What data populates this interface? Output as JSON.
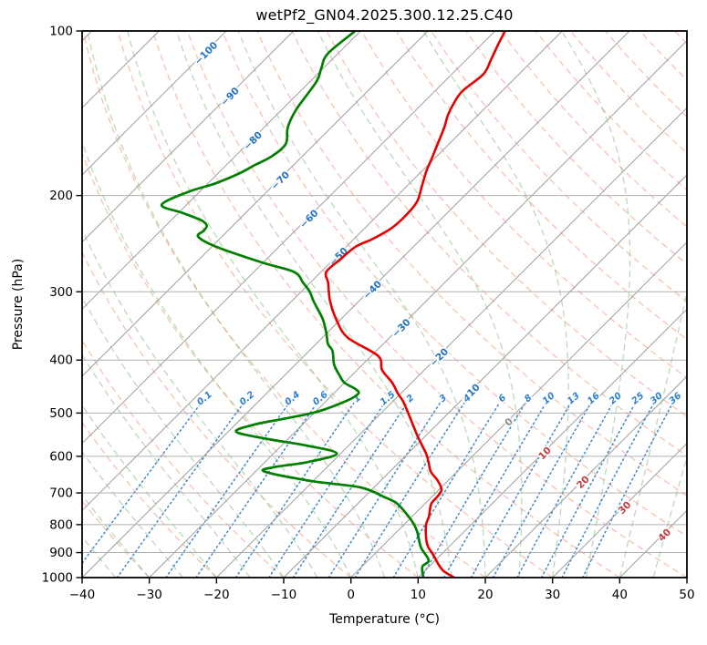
{
  "title": "wetPf2_GN04.2025.300.12.25.C40",
  "axes": {
    "x_label": "Temperature (°C)",
    "y_label": "Pressure (hPa)",
    "x_ticks": [
      -40,
      -30,
      -20,
      -10,
      0,
      10,
      20,
      30,
      40,
      50
    ],
    "y_ticks": [
      100,
      200,
      300,
      400,
      500,
      600,
      700,
      800,
      900,
      1000
    ],
    "x_range_c": [
      -40,
      50
    ],
    "pressure_range_hpa": [
      100,
      1000
    ],
    "y_scale": "log10",
    "skew_degrees": 45,
    "grid": true
  },
  "chart_data": {
    "type": "line",
    "projection": "skew-t-log-p",
    "title": "wetPf2_GN04.2025.300.12.25.C40",
    "xlabel": "Temperature (°C)",
    "ylabel": "Pressure (hPa)",
    "series": [
      {
        "name": "temperature",
        "color": "#e60000",
        "width": 2.6,
        "points_p_t": [
          [
            100,
            -58.5
          ],
          [
            106,
            -57.5
          ],
          [
            113,
            -56.3
          ],
          [
            120,
            -55.3
          ],
          [
            129,
            -55.9
          ],
          [
            137,
            -55.2
          ],
          [
            143,
            -54.4
          ],
          [
            150,
            -53.2
          ],
          [
            161,
            -51.7
          ],
          [
            172,
            -50.3
          ],
          [
            180,
            -49.4
          ],
          [
            192,
            -47.8
          ],
          [
            205,
            -46.2
          ],
          [
            217,
            -45.8
          ],
          [
            229,
            -46.0
          ],
          [
            240,
            -47.2
          ],
          [
            248,
            -48.6
          ],
          [
            262,
            -49.0
          ],
          [
            276,
            -49.2
          ],
          [
            289,
            -47.3
          ],
          [
            312,
            -44.3
          ],
          [
            340,
            -40.2
          ],
          [
            364,
            -36.2
          ],
          [
            393,
            -29.0
          ],
          [
            417,
            -26.3
          ],
          [
            440,
            -22.9
          ],
          [
            460,
            -20.5
          ],
          [
            475,
            -18.6
          ],
          [
            497,
            -16.3
          ],
          [
            530,
            -13.1
          ],
          [
            556,
            -10.7
          ],
          [
            593,
            -7.3
          ],
          [
            617,
            -5.5
          ],
          [
            640,
            -3.9
          ],
          [
            665,
            -1.5
          ],
          [
            691,
            0.4
          ],
          [
            712,
            0.8
          ],
          [
            734,
            1.0
          ],
          [
            773,
            2.5
          ],
          [
            800,
            3.3
          ],
          [
            851,
            5.5
          ],
          [
            880,
            7.0
          ],
          [
            906,
            8.7
          ],
          [
            950,
            11.3
          ],
          [
            975,
            13.0
          ],
          [
            998,
            15.2
          ]
        ]
      },
      {
        "name": "dewpoint",
        "color": "#007f00",
        "width": 2.7,
        "points_p_t": [
          [
            100,
            -80.8
          ],
          [
            110,
            -81.5
          ],
          [
            117,
            -80.3
          ],
          [
            124,
            -79.0
          ],
          [
            139,
            -77.9
          ],
          [
            150,
            -76.5
          ],
          [
            161,
            -74.3
          ],
          [
            170,
            -74.6
          ],
          [
            176,
            -75.8
          ],
          [
            182,
            -76.8
          ],
          [
            190,
            -78.9
          ],
          [
            197,
            -81.7
          ],
          [
            208,
            -83.7
          ],
          [
            215,
            -79.5
          ],
          [
            222,
            -75.5
          ],
          [
            227,
            -73.9
          ],
          [
            232,
            -73.6
          ],
          [
            238,
            -73.5
          ],
          [
            248,
            -69.4
          ],
          [
            265,
            -60.3
          ],
          [
            276,
            -54.0
          ],
          [
            289,
            -51.0
          ],
          [
            300,
            -48.7
          ],
          [
            313,
            -46.6
          ],
          [
            336,
            -42.8
          ],
          [
            357,
            -40.1
          ],
          [
            374,
            -38.2
          ],
          [
            385,
            -36.5
          ],
          [
            408,
            -34.2
          ],
          [
            426,
            -31.9
          ],
          [
            440,
            -30.0
          ],
          [
            452,
            -27.4
          ],
          [
            461,
            -26.3
          ],
          [
            475,
            -27.0
          ],
          [
            497,
            -29.7
          ],
          [
            512,
            -33.6
          ],
          [
            525,
            -37.2
          ],
          [
            541,
            -38.8
          ],
          [
            557,
            -33.4
          ],
          [
            573,
            -26.4
          ],
          [
            593,
            -20.6
          ],
          [
            615,
            -23.7
          ],
          [
            628,
            -27.9
          ],
          [
            640,
            -28.6
          ],
          [
            666,
            -20.2
          ],
          [
            684,
            -12.0
          ],
          [
            713,
            -6.9
          ],
          [
            729,
            -4.5
          ],
          [
            752,
            -2.3
          ],
          [
            790,
            0.8
          ],
          [
            822,
            2.9
          ],
          [
            880,
            5.9
          ],
          [
            930,
            9.0
          ],
          [
            955,
            9.0
          ],
          [
            998,
            10.7
          ]
        ]
      }
    ],
    "isotherms": {
      "start": -160,
      "end": 50,
      "step": 10,
      "color": "#9e9e9e",
      "labels": [
        {
          "value": -100,
          "p": 110,
          "color": "#2273c3"
        },
        {
          "value": -90,
          "p": 132,
          "color": "#2273c3"
        },
        {
          "value": -80,
          "p": 159,
          "color": "#2273c3"
        },
        {
          "value": -70,
          "p": 188,
          "color": "#2273c3"
        },
        {
          "value": -60,
          "p": 221,
          "color": "#2273c3"
        },
        {
          "value": -50,
          "p": 259,
          "color": "#2273c3"
        },
        {
          "value": -40,
          "p": 298,
          "color": "#2273c3"
        },
        {
          "value": -30,
          "p": 350,
          "color": "#2273c3"
        },
        {
          "value": -20,
          "p": 396,
          "color": "#2273c3"
        },
        {
          "value": -10,
          "p": 460,
          "color": "#2273c3"
        },
        {
          "value": 0,
          "p": 520,
          "color": "#8a8a8a"
        },
        {
          "value": 10,
          "p": 593,
          "color": "#c23b3b"
        },
        {
          "value": 20,
          "p": 670,
          "color": "#c23b3b"
        },
        {
          "value": 30,
          "p": 746,
          "color": "#c23b3b"
        },
        {
          "value": 40,
          "p": 837,
          "color": "#c23b3b"
        }
      ]
    },
    "dry_adiabats": {
      "theta_start": -40,
      "theta_end": 200,
      "step": 10,
      "color": "#ef8663",
      "opacity": 0.5
    },
    "moist_adiabats": {
      "theta_w_start": -40,
      "theta_w_end": 45,
      "step": 5,
      "color": "#74b874",
      "opacity": 0.5
    },
    "mixing_ratio_lines": {
      "values_g_kg": [
        0.1,
        0.2,
        0.4,
        0.6,
        1,
        1.5,
        2,
        3,
        4,
        6,
        8,
        10,
        13,
        16,
        20,
        25,
        30,
        36
      ],
      "labels": [
        "0.1",
        "0.2",
        "0.4",
        "0.6",
        "1",
        "1.5",
        "2",
        "3",
        "4",
        "6",
        "8",
        "10",
        "13",
        "16",
        "20",
        "25",
        "30",
        "36"
      ],
      "top_p": 480,
      "label_p": 470,
      "color": "#3f87cf",
      "label_color": "#2e7fd0"
    },
    "pressure_gridlines": [
      100,
      200,
      300,
      400,
      500,
      600,
      700,
      800,
      900,
      1000
    ],
    "gridline_color": "#b0b0b0"
  }
}
